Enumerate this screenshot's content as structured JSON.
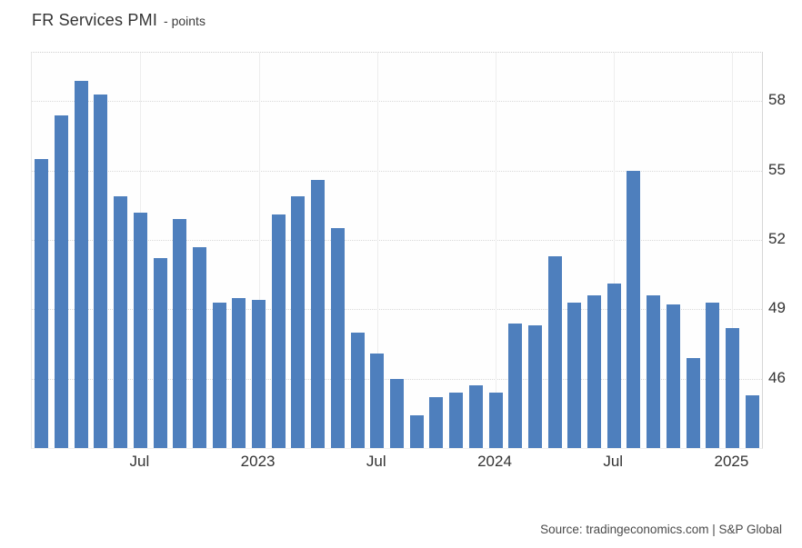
{
  "header": {
    "title": "FR Services PMI",
    "unit": "- points"
  },
  "footer": {
    "source": "Source: tradingeconomics.com | S&P Global"
  },
  "chart_data": {
    "type": "bar",
    "title": "FR Services PMI",
    "ylabel": "points",
    "bar_color": "#4E7FBD",
    "grid": {
      "horizontal": "dotted",
      "vertical": "solid"
    },
    "legend_visible": false,
    "ylim": [
      43.0,
      60.1
    ],
    "yticks": [
      46,
      49,
      52,
      55,
      58
    ],
    "x": [
      "2022-02",
      "2022-03",
      "2022-04",
      "2022-05",
      "2022-06",
      "2022-07",
      "2022-08",
      "2022-09",
      "2022-10",
      "2022-11",
      "2022-12",
      "2023-01",
      "2023-02",
      "2023-03",
      "2023-04",
      "2023-05",
      "2023-06",
      "2023-07",
      "2023-08",
      "2023-09",
      "2023-10",
      "2023-11",
      "2023-12",
      "2024-01",
      "2024-02",
      "2024-03",
      "2024-04",
      "2024-05",
      "2024-06",
      "2024-07",
      "2024-08",
      "2024-09",
      "2024-10",
      "2024-11",
      "2024-12",
      "2025-01",
      "2025-02"
    ],
    "values": [
      55.5,
      57.4,
      58.9,
      58.3,
      53.9,
      53.2,
      51.2,
      52.9,
      51.7,
      49.3,
      49.5,
      49.4,
      53.1,
      53.9,
      54.6,
      52.5,
      48.0,
      47.1,
      46.0,
      44.4,
      45.2,
      45.4,
      45.7,
      45.4,
      48.4,
      48.3,
      51.3,
      49.3,
      49.6,
      50.1,
      55.0,
      49.6,
      49.2,
      46.9,
      49.3,
      48.2,
      45.3
    ],
    "xticks": [
      {
        "index": 5,
        "label": "Jul"
      },
      {
        "index": 11,
        "label": "2023"
      },
      {
        "index": 17,
        "label": "Jul"
      },
      {
        "index": 23,
        "label": "2024"
      },
      {
        "index": 29,
        "label": "Jul"
      },
      {
        "index": 35,
        "label": "2025"
      }
    ]
  }
}
